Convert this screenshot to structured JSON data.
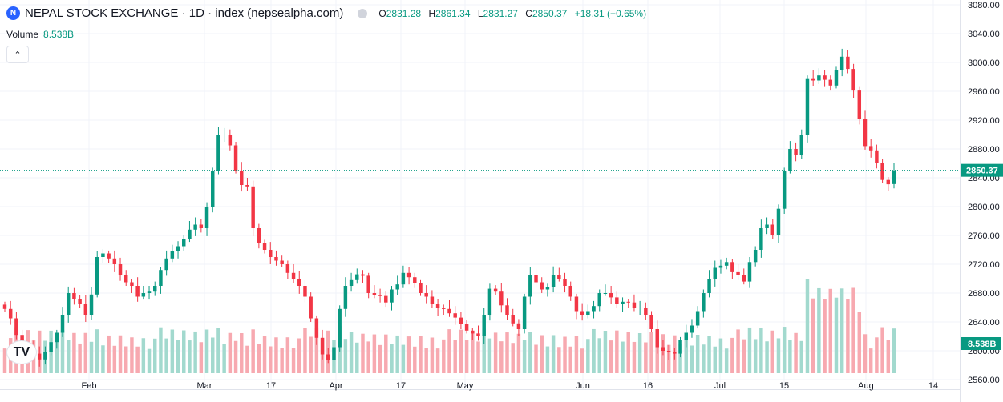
{
  "header": {
    "logo_letter": "N",
    "title": "NEPAL STOCK EXCHANGE · 1D · index (nepsealpha.com)",
    "ohlc": [
      {
        "label": "O",
        "value": "2831.28"
      },
      {
        "label": "H",
        "value": "2861.34"
      },
      {
        "label": "L",
        "value": "2831.27"
      },
      {
        "label": "C",
        "value": "2850.37"
      }
    ],
    "change": "+18.31 (+0.65%)"
  },
  "volume": {
    "label": "Volume",
    "value": "8.538B"
  },
  "collapse_icon": "chevron-up-icon",
  "tv_logo": "TV",
  "colors": {
    "up": "#089981",
    "down": "#f23645",
    "up_volume": "#a2d9ce",
    "down_volume": "#f7a9b0",
    "grid": "#f0f3fa",
    "axis_text": "#131722"
  },
  "chart_data": {
    "type": "candlestick",
    "title": "NEPAL STOCK EXCHANGE · 1D · index (nepsealpha.com)",
    "ylim": [
      2530,
      3080
    ],
    "y_ticks": [
      "3080.00",
      "3040.00",
      "3000.00",
      "2960.00",
      "2920.00",
      "2880.00",
      "2840.00",
      "2800.00",
      "2760.00",
      "2720.00",
      "2680.00",
      "2640.00",
      "2600.00",
      "2560.00"
    ],
    "x_ticks": [
      "Feb",
      "Mar",
      "17",
      "Apr",
      "17",
      "May",
      "Jun",
      "16",
      "Jul",
      "15",
      "Aug",
      "14"
    ],
    "last_price": "2850.37",
    "last_volume": "8.538B",
    "closes": [
      2658,
      2645,
      2622,
      2608,
      2602,
      2596,
      2588,
      2598,
      2612,
      2625,
      2650,
      2680,
      2672,
      2665,
      2650,
      2678,
      2730,
      2735,
      2728,
      2720,
      2705,
      2695,
      2690,
      2675,
      2680,
      2682,
      2690,
      2712,
      2728,
      2738,
      2745,
      2755,
      2768,
      2775,
      2770,
      2800,
      2850,
      2900,
      2900,
      2885,
      2850,
      2830,
      2828,
      2770,
      2750,
      2740,
      2730,
      2725,
      2720,
      2708,
      2700,
      2690,
      2675,
      2645,
      2618,
      2595,
      2587,
      2605,
      2658,
      2690,
      2698,
      2706,
      2704,
      2680,
      2677,
      2676,
      2667,
      2685,
      2692,
      2708,
      2702,
      2694,
      2680,
      2675,
      2665,
      2659,
      2658,
      2652,
      2646,
      2637,
      2628,
      2624,
      2620,
      2650,
      2686,
      2682,
      2663,
      2650,
      2638,
      2630,
      2675,
      2705,
      2695,
      2685,
      2688,
      2705,
      2700,
      2690,
      2675,
      2655,
      2650,
      2655,
      2662,
      2680,
      2680,
      2674,
      2665,
      2668,
      2667,
      2660,
      2660,
      2650,
      2630,
      2605,
      2600,
      2598,
      2596,
      2615,
      2625,
      2635,
      2655,
      2680,
      2700,
      2715,
      2718,
      2723,
      2709,
      2705,
      2696,
      2723,
      2740,
      2770,
      2775,
      2760,
      2797,
      2850,
      2880,
      2872,
      2900,
      2977,
      2975,
      2982,
      2976,
      2968,
      2990,
      3008,
      2991,
      2961,
      2922,
      2884,
      2878,
      2860,
      2837,
      2831,
      2850
    ]
  }
}
